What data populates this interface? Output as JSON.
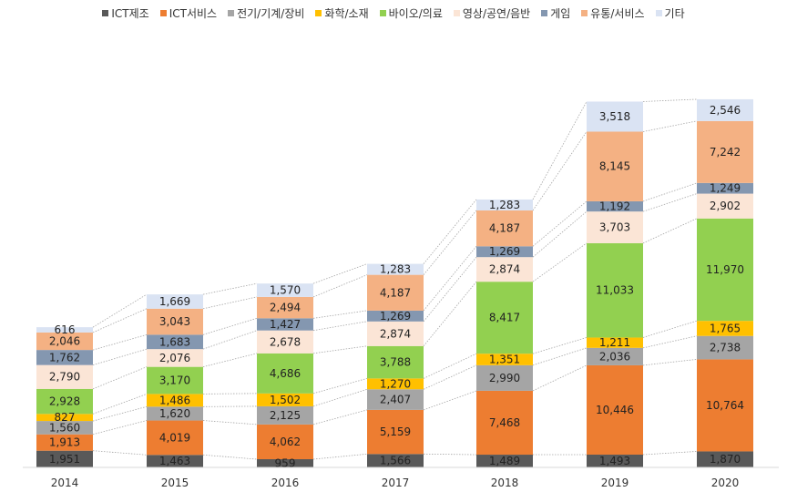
{
  "chart_data": {
    "type": "bar",
    "stacked": true,
    "categories": [
      "2014",
      "2015",
      "2016",
      "2017",
      "2018",
      "2019",
      "2020"
    ],
    "series": [
      {
        "name": "ICT제조",
        "color": "#595959",
        "values": [
          1951,
          1463,
          959,
          1566,
          1489,
          1493,
          1870
        ]
      },
      {
        "name": "ICT서비스",
        "color": "#ED7D31",
        "values": [
          1913,
          4019,
          4062,
          5159,
          7468,
          10446,
          10764
        ]
      },
      {
        "name": "전기/기계/장비",
        "color": "#A5A5A5",
        "values": [
          1560,
          1620,
          2125,
          2407,
          2990,
          2036,
          2738
        ]
      },
      {
        "name": "화학/소재",
        "color": "#FFC000",
        "values": [
          827,
          1486,
          1502,
          1270,
          1351,
          1211,
          1765
        ]
      },
      {
        "name": "바이오/의료",
        "color": "#92D050",
        "values": [
          2928,
          3170,
          4686,
          3788,
          8417,
          11033,
          11970
        ]
      },
      {
        "name": "영상/공연/음반",
        "color": "#FBE5D6",
        "values": [
          2790,
          2076,
          2678,
          2874,
          2874,
          3703,
          2902
        ]
      },
      {
        "name": "게임",
        "color": "#8497B0",
        "values": [
          1762,
          1683,
          1427,
          1269,
          1269,
          1192,
          1249
        ]
      },
      {
        "name": "유통/서비스",
        "color": "#F4B183",
        "values": [
          2046,
          3043,
          2494,
          4187,
          4187,
          8145,
          7242
        ]
      },
      {
        "name": "기타",
        "color": "#DAE3F3",
        "values": [
          616,
          1669,
          1570,
          1283,
          1283,
          3518,
          2546
        ]
      }
    ],
    "labels": [
      [
        "1,951",
        "1,463",
        "959",
        "1,566",
        "1,489",
        "1,493",
        "1,870"
      ],
      [
        "1,913",
        "4,019",
        "4,062",
        "5,159",
        "7,468",
        "10,446",
        "10,764"
      ],
      [
        "1,560",
        "1,620",
        "2,125",
        "2,407",
        "2,990",
        "2,036",
        "2,738"
      ],
      [
        "827",
        "1,486",
        "1,502",
        "1,270",
        "1,351",
        "1,211",
        "1,765"
      ],
      [
        "2,928",
        "3,170",
        "4,686",
        "3,788",
        "8,417",
        "11,033",
        "11,970"
      ],
      [
        "2,790",
        "2,076",
        "2,678",
        "2,874",
        "2,874",
        "3,703",
        "2,902"
      ],
      [
        "1,762",
        "1,683",
        "1,427",
        "1,269",
        "1,269",
        "1,192",
        "1,249"
      ],
      [
        "2,046",
        "3,043",
        "2,494",
        "4,187",
        "4,187",
        "8,145",
        "7,242"
      ],
      [
        "616",
        "1,669",
        "1,570",
        "1,283",
        "1,283",
        "3,518",
        "2,546"
      ]
    ],
    "legend_position": "top",
    "grid": false,
    "series_lines": true,
    "ylim": [
      0,
      46000
    ]
  }
}
